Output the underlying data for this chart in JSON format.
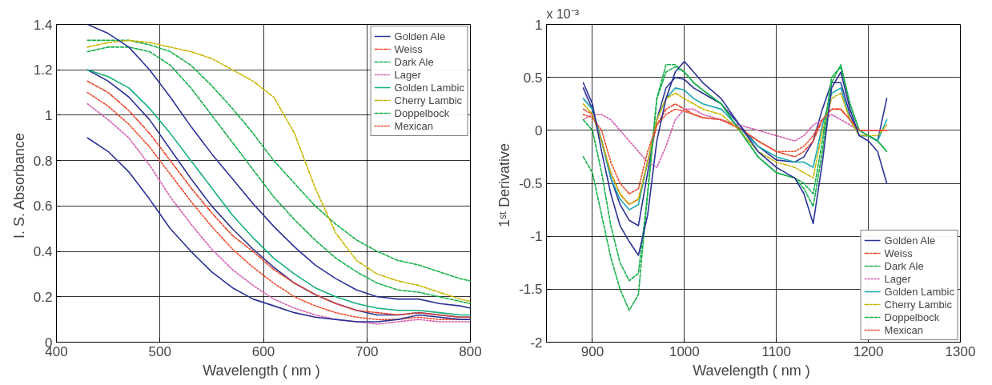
{
  "chart_data": [
    {
      "type": "line",
      "xlabel": "Wavelength  ( nm )",
      "ylabel": "I. S.  Absorbance",
      "xlim": [
        400,
        800
      ],
      "ylim": [
        0,
        1.4
      ],
      "xticks": [
        400,
        500,
        600,
        700,
        800
      ],
      "yticks": [
        0,
        0.2,
        0.4,
        0.6,
        0.8,
        1,
        1.2,
        1.4
      ],
      "grid": true,
      "legend": "top right",
      "marker": "none",
      "x": [
        430,
        450,
        470,
        490,
        510,
        530,
        550,
        570,
        590,
        610,
        630,
        650,
        670,
        690,
        710,
        730,
        750,
        770,
        790,
        800
      ],
      "series": [
        {
          "name": "Golden Ale",
          "color": "#2b3296",
          "line_style": "solid",
          "values": [
            1.2,
            1.15,
            1.08,
            0.98,
            0.85,
            0.72,
            0.6,
            0.5,
            0.41,
            0.33,
            0.26,
            0.21,
            0.17,
            0.14,
            0.12,
            0.12,
            0.13,
            0.12,
            0.11,
            0.11
          ]
        },
        {
          "name": "Weiss",
          "color": "#e8442a",
          "line_style": "dashdot",
          "values": [
            1.15,
            1.1,
            1.02,
            0.92,
            0.8,
            0.68,
            0.57,
            0.47,
            0.4,
            0.32,
            0.26,
            0.21,
            0.17,
            0.14,
            0.13,
            0.12,
            0.13,
            0.12,
            0.11,
            0.11
          ]
        },
        {
          "name": "Dark Ale",
          "color": "#16b04a",
          "line_style": "dashed",
          "values": [
            1.33,
            1.33,
            1.33,
            1.31,
            1.28,
            1.22,
            1.13,
            1.03,
            0.92,
            0.8,
            0.7,
            0.6,
            0.52,
            0.45,
            0.4,
            0.36,
            0.34,
            0.31,
            0.28,
            0.27
          ]
        },
        {
          "name": "Lager",
          "color": "#d65db1",
          "line_style": "dotted",
          "values": [
            1.05,
            0.98,
            0.9,
            0.78,
            0.64,
            0.52,
            0.41,
            0.32,
            0.25,
            0.19,
            0.15,
            0.12,
            0.1,
            0.09,
            0.08,
            0.09,
            0.1,
            0.09,
            0.09,
            0.09
          ]
        },
        {
          "name": "Golden Lambic",
          "color": "#14b07a",
          "line_style": "solid",
          "values": [
            1.2,
            1.17,
            1.12,
            1.03,
            0.92,
            0.8,
            0.68,
            0.56,
            0.46,
            0.37,
            0.3,
            0.24,
            0.2,
            0.17,
            0.15,
            0.14,
            0.14,
            0.13,
            0.12,
            0.12
          ]
        },
        {
          "name": "Cherry Lambic",
          "color": "#c8b400",
          "line_style": "dashdot",
          "values": [
            1.3,
            1.32,
            1.33,
            1.32,
            1.3,
            1.28,
            1.25,
            1.2,
            1.15,
            1.08,
            0.92,
            0.68,
            0.48,
            0.36,
            0.3,
            0.27,
            0.25,
            0.22,
            0.19,
            0.18
          ]
        },
        {
          "name": "Doppelbock",
          "color": "#16b04a",
          "line_style": "dashed",
          "values": [
            1.28,
            1.3,
            1.3,
            1.28,
            1.22,
            1.12,
            1.0,
            0.88,
            0.76,
            0.64,
            0.54,
            0.45,
            0.37,
            0.31,
            0.26,
            0.23,
            0.22,
            0.2,
            0.18,
            0.17
          ]
        },
        {
          "name": "Mexican",
          "color": "#ef4a2a",
          "line_style": "dotted",
          "values": [
            1.1,
            1.04,
            0.96,
            0.86,
            0.74,
            0.62,
            0.51,
            0.41,
            0.33,
            0.26,
            0.2,
            0.16,
            0.13,
            0.11,
            0.1,
            0.1,
            0.11,
            0.1,
            0.1,
            0.1
          ]
        },
        {
          "color": "#2b3296",
          "line_style": "solid",
          "values": [
            1.4,
            1.36,
            1.3,
            1.2,
            1.08,
            0.95,
            0.83,
            0.72,
            0.61,
            0.51,
            0.42,
            0.34,
            0.28,
            0.23,
            0.2,
            0.19,
            0.19,
            0.17,
            0.16,
            0.15
          ]
        },
        {
          "color": "#2b3296",
          "line_style": "solid",
          "values": [
            0.9,
            0.84,
            0.75,
            0.63,
            0.5,
            0.4,
            0.31,
            0.24,
            0.19,
            0.16,
            0.13,
            0.11,
            0.1,
            0.09,
            0.09,
            0.1,
            0.12,
            0.11,
            0.1,
            0.1
          ]
        }
      ]
    },
    {
      "type": "line",
      "xlabel": "Wavelength  ( nm )",
      "ylabel": "1ˢᵗ  Derivative",
      "annotations": [
        "x 10⁻³"
      ],
      "xlim": [
        850,
        1300
      ],
      "ylim": [
        -2,
        1
      ],
      "xticks": [
        900,
        1000,
        1100,
        1200,
        1300
      ],
      "yticks": [
        -2,
        -1.5,
        -1,
        -0.5,
        0,
        0.5,
        1
      ],
      "grid": true,
      "legend": "bottom right",
      "marker": "none",
      "x": [
        890,
        900,
        910,
        920,
        930,
        940,
        950,
        960,
        970,
        980,
        990,
        1000,
        1010,
        1020,
        1040,
        1060,
        1080,
        1100,
        1120,
        1130,
        1140,
        1150,
        1160,
        1170,
        1180,
        1190,
        1200,
        1210,
        1220
      ],
      "series": [
        {
          "name": "Golden Ale",
          "color": "#2b3296",
          "line_style": "solid",
          "values": [
            0.4,
            0.2,
            -0.1,
            -0.45,
            -0.7,
            -0.85,
            -0.9,
            -0.4,
            0.1,
            0.4,
            0.5,
            0.48,
            0.4,
            0.35,
            0.25,
            0.05,
            -0.15,
            -0.28,
            -0.3,
            -0.25,
            -0.1,
            0.2,
            0.45,
            0.45,
            0.15,
            -0.05,
            -0.05,
            -0.1,
            0.3
          ]
        },
        {
          "name": "Weiss",
          "color": "#e8442a",
          "line_style": "dashdot",
          "values": [
            0.2,
            0.15,
            -0.1,
            -0.4,
            -0.6,
            -0.7,
            -0.65,
            -0.3,
            0.05,
            0.2,
            0.25,
            0.2,
            0.15,
            0.12,
            0.1,
            0.02,
            -0.1,
            -0.2,
            -0.25,
            -0.2,
            -0.1,
            0.1,
            0.2,
            0.2,
            0.1,
            0,
            0,
            0,
            0
          ]
        },
        {
          "name": "Dark Ale",
          "color": "#16b04a",
          "line_style": "dashed",
          "values": [
            -0.25,
            -0.4,
            -0.8,
            -1.2,
            -1.5,
            -1.7,
            -1.55,
            -0.6,
            0.3,
            0.62,
            0.62,
            0.55,
            0.45,
            0.38,
            0.25,
            0,
            -0.25,
            -0.4,
            -0.45,
            -0.55,
            -0.72,
            -0.2,
            0.45,
            0.62,
            0.25,
            0,
            -0.05,
            -0.1,
            -0.2
          ]
        },
        {
          "name": "Lager",
          "color": "#d65db1",
          "line_style": "dotted",
          "values": [
            0.1,
            0.15,
            0.15,
            0.1,
            0,
            -0.1,
            -0.2,
            -0.3,
            -0.35,
            -0.15,
            0.1,
            0.2,
            0.2,
            0.15,
            0.1,
            0.05,
            0,
            -0.05,
            -0.1,
            -0.05,
            0.05,
            0.1,
            0.15,
            0.1,
            0.05,
            0,
            0,
            0,
            0
          ]
        },
        {
          "name": "Golden Lambic",
          "color": "#1aa9b0",
          "line_style": "solid",
          "values": [
            0.3,
            0.2,
            -0.1,
            -0.45,
            -0.65,
            -0.75,
            -0.7,
            -0.3,
            0.1,
            0.3,
            0.4,
            0.38,
            0.3,
            0.25,
            0.2,
            0.02,
            -0.15,
            -0.25,
            -0.3,
            -0.3,
            -0.35,
            0.05,
            0.35,
            0.4,
            0.1,
            -0.05,
            -0.05,
            -0.1,
            0.1
          ]
        },
        {
          "name": "Cherry Lambic",
          "color": "#c8b400",
          "line_style": "dashdot",
          "values": [
            0.25,
            0.15,
            -0.1,
            -0.4,
            -0.6,
            -0.7,
            -0.65,
            -0.3,
            0.1,
            0.3,
            0.35,
            0.3,
            0.25,
            0.2,
            0.15,
            0,
            -0.2,
            -0.3,
            -0.35,
            -0.4,
            -0.45,
            0,
            0.3,
            0.35,
            0.1,
            -0.05,
            -0.05,
            -0.05,
            0.05
          ]
        },
        {
          "name": "Doppelbock",
          "color": "#16b04a",
          "line_style": "dashed",
          "values": [
            0.1,
            0,
            -0.4,
            -0.9,
            -1.25,
            -1.42,
            -1.35,
            -0.6,
            0.3,
            0.55,
            0.6,
            0.55,
            0.45,
            0.38,
            0.25,
            0,
            -0.25,
            -0.4,
            -0.45,
            -0.5,
            -0.6,
            -0.1,
            0.5,
            0.6,
            0.25,
            0,
            -0.05,
            -0.1,
            -0.2
          ]
        },
        {
          "name": "Mexican",
          "color": "#ef4a2a",
          "line_style": "dotted",
          "values": [
            0.15,
            0.12,
            0,
            -0.3,
            -0.5,
            -0.6,
            -0.55,
            -0.2,
            0.05,
            0.15,
            0.2,
            0.18,
            0.15,
            0.12,
            0.1,
            0.02,
            -0.1,
            -0.2,
            -0.2,
            -0.15,
            -0.05,
            0.1,
            0.2,
            0.2,
            0.1,
            0,
            0,
            0,
            0
          ]
        },
        {
          "color": "#2b3296",
          "line_style": "solid",
          "values": [
            0.45,
            0.25,
            -0.2,
            -0.6,
            -0.9,
            -1.05,
            -1.18,
            -0.8,
            -0.1,
            0.3,
            0.55,
            0.65,
            0.55,
            0.45,
            0.3,
            0.05,
            -0.2,
            -0.35,
            -0.45,
            -0.6,
            -0.88,
            -0.3,
            0.4,
            0.55,
            0.2,
            -0.05,
            -0.1,
            -0.2,
            -0.5
          ]
        }
      ]
    }
  ]
}
